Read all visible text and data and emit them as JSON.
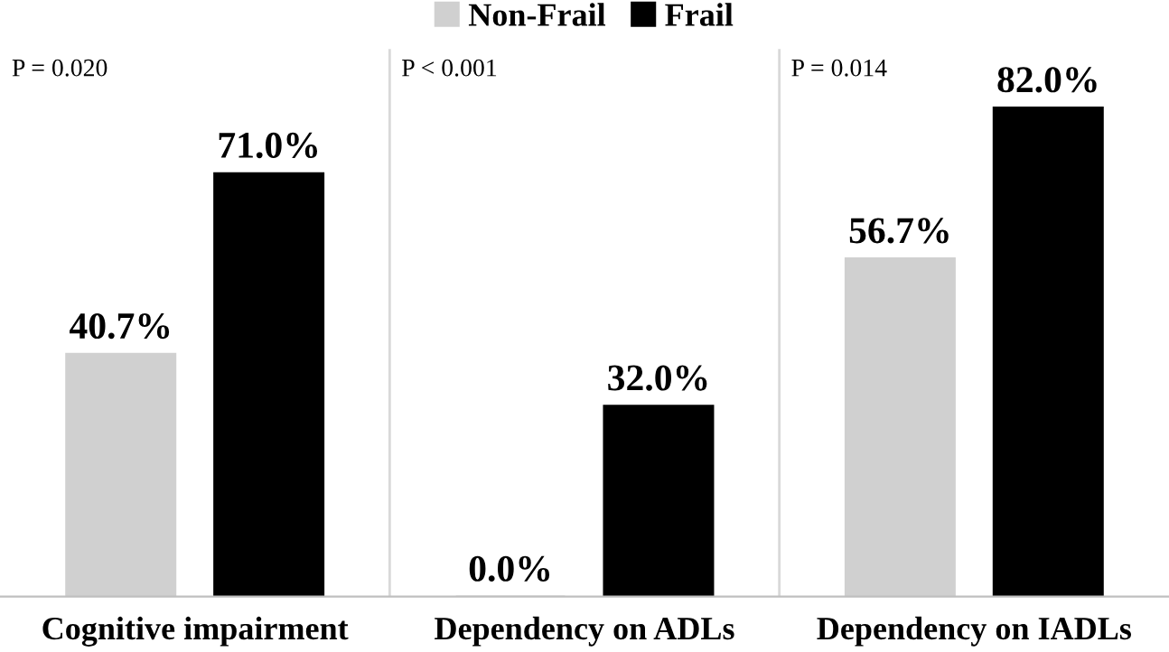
{
  "chart_data": {
    "type": "bar",
    "categories": [
      "Cognitive impairment",
      "Dependency on ADLs",
      "Dependency on IADLs"
    ],
    "series": [
      {
        "name": "Non-Frail",
        "color": "#d0d0d0",
        "values": [
          40.7,
          0.0,
          56.7
        ],
        "value_labels": [
          "40.7%",
          "0.0%",
          "56.7%"
        ]
      },
      {
        "name": "Frail",
        "color": "#000000",
        "values": [
          71.0,
          32.0,
          82.0
        ],
        "value_labels": [
          "71.0%",
          "32.0%",
          "82.0%"
        ]
      }
    ],
    "annotations": [
      "P = 0.020",
      "P < 0.001",
      "P = 0.014"
    ],
    "grid": "x",
    "legend": "top",
    "tick_labels": "x"
  }
}
